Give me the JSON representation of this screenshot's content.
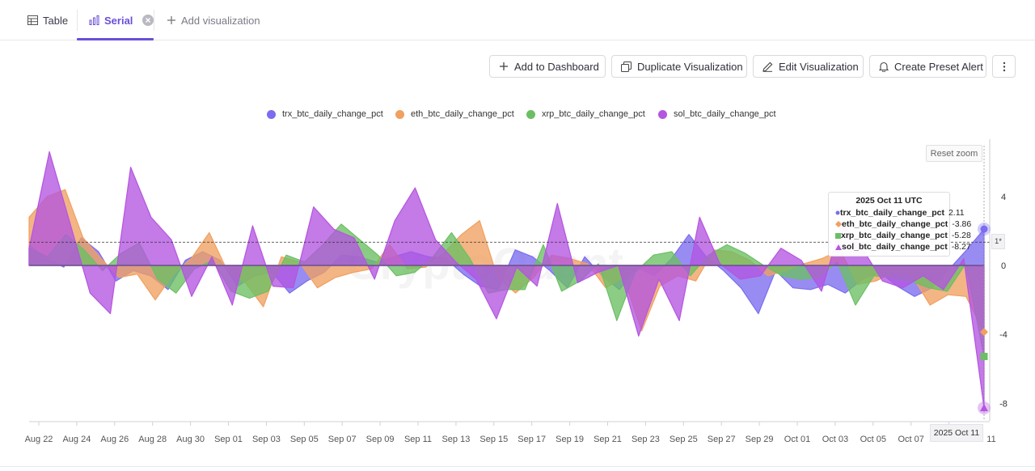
{
  "tabs": {
    "table": "Table",
    "serial": "Serial",
    "add": "Add visualization"
  },
  "toolbar": {
    "add_dashboard": "Add to Dashboard",
    "duplicate": "Duplicate Visualization",
    "edit": "Edit Visualization",
    "alert": "Create Preset Alert"
  },
  "reset_zoom": "Reset zoom",
  "watermark": "CryptoQuant",
  "tooltip": {
    "title": "2025 Oct 11 UTC",
    "rows": [
      {
        "name": "trx_btc_daily_change_pct",
        "value": "2.11"
      },
      {
        "name": "eth_btc_daily_change_pct",
        "value": "-3.86"
      },
      {
        "name": "xrp_btc_daily_change_pct",
        "value": "-5.28"
      },
      {
        "name": "sol_btc_daily_change_pct",
        "value": "-8.27"
      }
    ]
  },
  "crosshair": {
    "date_label": "2025 Oct 11",
    "level_label": "1*",
    "level_value": 1.35
  },
  "chart_data": {
    "type": "area",
    "title": "",
    "xlabel": "",
    "ylabel": "",
    "ylim": [
      -9,
      7
    ],
    "y_ticks": [
      4,
      0,
      -4,
      -8
    ],
    "x_tick_labels": [
      "Aug 22",
      "Aug 24",
      "Aug 26",
      "Aug 28",
      "Aug 30",
      "Sep 01",
      "Sep 03",
      "Sep 05",
      "Sep 07",
      "Sep 09",
      "Sep 11",
      "Sep 13",
      "Sep 15",
      "Sep 17",
      "Sep 19",
      "Sep 21",
      "Sep 23",
      "Sep 25",
      "Sep 27",
      "Sep 29",
      "Oct 01",
      "Oct 03",
      "Oct 05",
      "Oct 07",
      "Oct 09",
      "Oct 11"
    ],
    "legend_position": "top-center",
    "series": [
      {
        "name": "trx_btc_daily_change_pct",
        "color": "#7b6cf0",
        "values": [
          1.2,
          0.4,
          -0.1,
          1.6,
          0.8,
          -0.9,
          -0.3,
          -0.6,
          -1.4,
          0.3,
          0.8,
          0.3,
          -1.2,
          -0.6,
          -0.4,
          -1.6,
          -0.9,
          -0.4,
          0.6,
          0.5,
          0.2,
          0.5,
          0.8,
          0.5,
          0.4,
          -0.5,
          -1.2,
          -1.4,
          0.9,
          0.5,
          -0.3,
          -1.3,
          0.5,
          -0.6,
          -1.4,
          -0.1,
          -0.6,
          0.4,
          1.8,
          0.5,
          -0.3,
          -1.3,
          -2.8,
          -0.3,
          -1.3,
          -1.4,
          -1.1,
          -1.6,
          -0.8,
          -0.4,
          -1.2,
          -1.8,
          -1.3,
          -0.2,
          0.9,
          2.11
        ]
      },
      {
        "name": "eth_btc_daily_change_pct",
        "color": "#f0a060",
        "values": [
          2.8,
          4.0,
          4.4,
          1.6,
          0.4,
          -0.7,
          -0.5,
          -2.0,
          -0.5,
          0.4,
          1.9,
          -0.3,
          -1.0,
          -2.4,
          0.5,
          0.2,
          -1.3,
          -0.7,
          -0.4,
          -0.2,
          1.2,
          -0.2,
          -0.1,
          0.7,
          1.8,
          2.6,
          -0.7,
          -1.6,
          -0.7,
          0.6,
          0.4,
          0.1,
          -1.3,
          -0.7,
          -3.8,
          -1.2,
          -0.6,
          -0.9,
          0.9,
          0.8,
          0.3,
          -0.6,
          -0.3,
          0.1,
          0.4,
          0.9,
          -1.1,
          -0.9,
          -0.4,
          -0.6,
          -2.3,
          -1.7,
          -1.8,
          -3.86
        ]
      },
      {
        "name": "xrp_btc_daily_change_pct",
        "color": "#6bbf63",
        "values": [
          1.0,
          0.5,
          1.8,
          0.9,
          -0.3,
          0.7,
          1.3,
          -0.8,
          -1.6,
          -0.2,
          0.3,
          -1.5,
          -1.9,
          -1.5,
          0.6,
          0.2,
          1.2,
          2.4,
          1.5,
          0.6,
          -0.6,
          -0.4,
          0.5,
          1.9,
          0.4,
          -1.6,
          -1.4,
          -1.4,
          1.2,
          -1.5,
          -0.9,
          0.1,
          -3.2,
          -0.4,
          0.6,
          0.8,
          -0.6,
          0.6,
          1.2,
          0.7,
          0.0,
          -0.6,
          -0.8,
          -0.7,
          0.2,
          -2.3,
          -0.6,
          -0.7,
          -0.9,
          -1.3,
          -1.5,
          0.1,
          -5.28
        ]
      },
      {
        "name": "sol_btc_daily_change_pct",
        "color": "#b455e0",
        "values": [
          1.0,
          6.6,
          2.5,
          -1.6,
          -2.8,
          5.7,
          2.8,
          1.5,
          -1.8,
          0.5,
          -2.3,
          2.3,
          -1.2,
          -1.3,
          3.4,
          2.1,
          1.6,
          -0.8,
          2.6,
          4.5,
          1.5,
          0.2,
          -0.8,
          -3.1,
          -0.1,
          -1.2,
          3.6,
          -1.0,
          -0.4,
          0.0,
          -4.1,
          -0.8,
          -3.2,
          2.8,
          0.1,
          -0.8,
          -0.6,
          1.0,
          0.3,
          -1.5,
          2.5,
          1.0,
          -0.9,
          -1.3,
          -0.6,
          -1.4,
          0.4,
          -8.27
        ]
      }
    ]
  }
}
